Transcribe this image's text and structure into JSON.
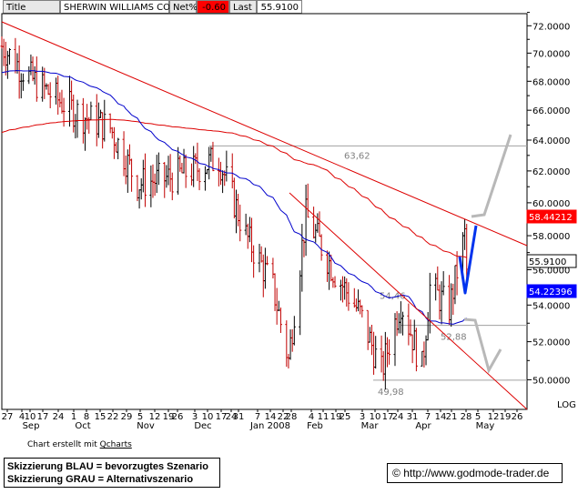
{
  "header": {
    "title_label": "Title",
    "title_value": "SHERWIN WILLIAMS CO",
    "netpct_label": "Net%",
    "netpct_value": "-0.60",
    "last_label": "Last",
    "last_value": "55.9100"
  },
  "footer": {
    "credit_prefix": "Chart erstellt mit ",
    "credit_link": "Qcharts",
    "legend_blue": "Skizzierung BLAU = bevorzugtes Szenario",
    "legend_grey": "Skizzierung GRAU = Alternativszenario",
    "url": "http://www.godmode-trader.de",
    "copyright_symbol": "©"
  },
  "chart_data": {
    "type": "ohlc",
    "title": "SHERWIN WILLIAMS CO",
    "y_axis": {
      "range": [
        48.0,
        73.0
      ],
      "ticks": [
        "72.0000",
        "70.0000",
        "68.0000",
        "66.0000",
        "64.0000",
        "62.0000",
        "60.0000",
        "58.0000",
        "56.0000",
        "54.0000",
        "52.0000",
        "50.0000"
      ],
      "scale_label": "LOG"
    },
    "x_axis": {
      "day_ticks": [
        "27",
        "4",
        "10",
        "17",
        "24",
        "1",
        "8",
        "15",
        "22",
        "29",
        "5",
        "12",
        "19",
        "26",
        "3",
        "10",
        "17",
        "24",
        "31",
        "7",
        "14",
        "22",
        "28",
        "4",
        "11",
        "19",
        "25",
        "3",
        "10",
        "17",
        "24",
        "31",
        "7",
        "14",
        "21",
        "28",
        "5",
        "12",
        "19",
        "26"
      ],
      "month_labels": [
        "Sep",
        "Oct",
        "Nov",
        "Dec",
        "Jan 2008",
        "Feb",
        "Mar",
        "Apr",
        "May"
      ]
    },
    "price_labels": {
      "last_price": "55.9100",
      "ma_red": "58.44212",
      "ma_blue": "54.22396"
    },
    "colors": {
      "bar_up": "#000000",
      "bar_down": "#c00000",
      "ma_long": "#dd0000",
      "ma_short": "#0000cc",
      "trendline": "#dd0000",
      "level_line": "#a0a0a0",
      "scenario_blue": "#0033ee",
      "scenario_grey": "#b8b8b8",
      "label_red_bg": "#ff0000",
      "label_blue_bg": "#0000ff"
    },
    "levels": [
      {
        "value": 63.62,
        "label": "63,62"
      },
      {
        "value": 52.88,
        "label": "52,88"
      },
      {
        "value": 49.98,
        "label": "49,98"
      }
    ],
    "annotations": [
      {
        "text": "54,46",
        "value": 54.46
      }
    ],
    "price_series": {
      "description": "daily OHLC bars, Aug 27 2007 - Apr 23 2008",
      "key_points": [
        {
          "date": "2007-08-27",
          "close": 70.5
        },
        {
          "date": "2007-09-10",
          "close": 68.3
        },
        {
          "date": "2007-09-24",
          "close": 66.8
        },
        {
          "date": "2007-10-08",
          "close": 65.6
        },
        {
          "date": "2007-10-22",
          "close": 64.8
        },
        {
          "date": "2007-11-05",
          "close": 61.2
        },
        {
          "date": "2007-11-19",
          "close": 61.5
        },
        {
          "date": "2007-12-03",
          "close": 62.0
        },
        {
          "date": "2007-12-17",
          "close": 62.8
        },
        {
          "date": "2007-12-31",
          "close": 58.0
        },
        {
          "date": "2008-01-14",
          "close": 55.0
        },
        {
          "date": "2008-01-22",
          "close": 51.0
        },
        {
          "date": "2008-01-31",
          "close": 59.2
        },
        {
          "date": "2008-02-14",
          "close": 56.0
        },
        {
          "date": "2008-02-28",
          "close": 53.5
        },
        {
          "date": "2008-03-10",
          "close": 50.4
        },
        {
          "date": "2008-03-20",
          "close": 54.2
        },
        {
          "date": "2008-03-31",
          "close": 50.6
        },
        {
          "date": "2008-04-04",
          "close": 55.0
        },
        {
          "date": "2008-04-14",
          "close": 53.8
        },
        {
          "date": "2008-04-22",
          "close": 58.0
        },
        {
          "date": "2008-04-23",
          "close": 55.91
        }
      ]
    }
  }
}
